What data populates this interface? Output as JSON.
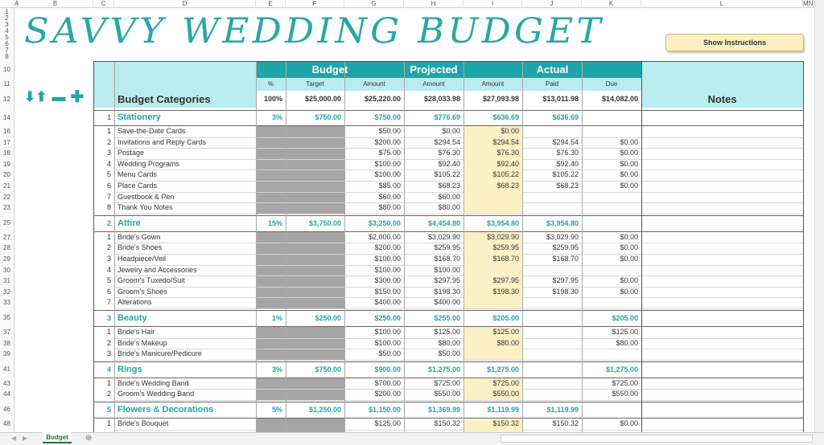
{
  "title": "SAVVY WEDDING BUDGET",
  "show_instructions": "Show Instructions",
  "columns": [
    "A",
    "B",
    "C",
    "D",
    "E",
    "F",
    "G",
    "H",
    "I",
    "J",
    "K",
    "L",
    "M",
    "N"
  ],
  "title_rows": [
    "1",
    "2",
    "3",
    "4",
    "5",
    "6",
    "7",
    "8"
  ],
  "header": {
    "rows": [
      "10",
      "11",
      "12"
    ],
    "categories_label": "Budget Categories",
    "notes_label": "Notes",
    "budget": "Budget",
    "projected": "Projected",
    "actual": "Actual",
    "pct": "%",
    "target": "Target",
    "amount": "Amount",
    "paid": "Paid",
    "due": "Due",
    "totals": {
      "pct": "100%",
      "target": "$25,000.00",
      "budget": "$25,220.00",
      "projected": "$28,033.98",
      "actual": "$27,093.98",
      "paid": "$13,011.98",
      "due": "$14,082.00"
    }
  },
  "icons": [
    "arrow-down-icon",
    "arrow-up-icon",
    "minus-icon",
    "plus-icon"
  ],
  "accent": "#1fa5a8",
  "categories": [
    {
      "row": "14",
      "n": "1",
      "name": "Stationery",
      "pct": "3%",
      "target": "$750.00",
      "budget": "$750.00",
      "projected": "$776.69",
      "actual": "$636.69",
      "paid": "$636.69",
      "due": "",
      "items": [
        {
          "row": "16",
          "n": "1",
          "name": "Save-the-Date Cards",
          "budget": "$50.00",
          "projected": "$0.00",
          "actual": "$0.00",
          "paid": "",
          "due": ""
        },
        {
          "row": "17",
          "n": "2",
          "name": "Invitations and Reply Cards",
          "budget": "$200.00",
          "projected": "$294.54",
          "actual": "$294.54",
          "paid": "$294.54",
          "due": "$0.00"
        },
        {
          "row": "18",
          "n": "3",
          "name": "Postage",
          "budget": "$75.00",
          "projected": "$76.30",
          "actual": "$76.30",
          "paid": "$76.30",
          "due": "$0.00"
        },
        {
          "row": "19",
          "n": "4",
          "name": "Wedding Programs",
          "budget": "$100.00",
          "projected": "$92.40",
          "actual": "$92.40",
          "paid": "$92.40",
          "due": "$0.00"
        },
        {
          "row": "20",
          "n": "5",
          "name": "Menu Cards",
          "budget": "$100.00",
          "projected": "$105.22",
          "actual": "$105.22",
          "paid": "$105.22",
          "due": "$0.00"
        },
        {
          "row": "21",
          "n": "6",
          "name": "Place Cards",
          "budget": "$85.00",
          "projected": "$68.23",
          "actual": "$68.23",
          "paid": "$68.23",
          "due": "$0.00"
        },
        {
          "row": "22",
          "n": "7",
          "name": "Guestbook & Pen",
          "budget": "$60.00",
          "projected": "$60.00",
          "actual": "",
          "paid": "",
          "due": ""
        },
        {
          "row": "23",
          "n": "8",
          "name": "Thank You Notes",
          "budget": "$80.00",
          "projected": "$80.00",
          "actual": "",
          "paid": "",
          "due": ""
        }
      ]
    },
    {
      "row": "25",
      "n": "2",
      "name": "Attire",
      "pct": "15%",
      "target": "$3,750.00",
      "budget": "$3,250.00",
      "projected": "$4,454.80",
      "actual": "$3,954.80",
      "paid": "$3,954.80",
      "due": "",
      "items": [
        {
          "row": "27",
          "n": "1",
          "name": "Bride's Gown",
          "budget": "$2,000.00",
          "projected": "$3,029.90",
          "actual": "$3,029.90",
          "paid": "$3,029.90",
          "due": "$0.00"
        },
        {
          "row": "28",
          "n": "2",
          "name": "Bride's Shoes",
          "budget": "$200.00",
          "projected": "$259.95",
          "actual": "$259.95",
          "paid": "$259.95",
          "due": "$0.00"
        },
        {
          "row": "29",
          "n": "3",
          "name": "Headpiece/Veil",
          "budget": "$100.00",
          "projected": "$168.70",
          "actual": "$168.70",
          "paid": "$168.70",
          "due": "$0.00"
        },
        {
          "row": "30",
          "n": "4",
          "name": "Jewelry and Accessories",
          "budget": "$100.00",
          "projected": "$100.00",
          "actual": "",
          "paid": "",
          "due": ""
        },
        {
          "row": "31",
          "n": "5",
          "name": "Groom's Tuxedo/Suit",
          "budget": "$300.00",
          "projected": "$297.95",
          "actual": "$297.95",
          "paid": "$297.95",
          "due": "$0.00"
        },
        {
          "row": "32",
          "n": "6",
          "name": "Groom's Shoes",
          "budget": "$150.00",
          "projected": "$198.30",
          "actual": "$198.30",
          "paid": "$198.30",
          "due": "$0.00"
        },
        {
          "row": "33",
          "n": "7",
          "name": "Alterations",
          "budget": "$400.00",
          "projected": "$400.00",
          "actual": "",
          "paid": "",
          "due": ""
        }
      ]
    },
    {
      "row": "35",
      "n": "3",
      "name": "Beauty",
      "pct": "1%",
      "target": "$250.00",
      "budget": "$250.00",
      "projected": "$255.00",
      "actual": "$205.00",
      "paid": "",
      "due": "$205.00",
      "items": [
        {
          "row": "37",
          "n": "1",
          "name": "Bride's Hair",
          "budget": "$100.00",
          "projected": "$125.00",
          "actual": "$125.00",
          "paid": "",
          "due": "$125.00"
        },
        {
          "row": "38",
          "n": "2",
          "name": "Bride's Makeup",
          "budget": "$100.00",
          "projected": "$80.00",
          "actual": "$80.00",
          "paid": "",
          "due": "$80.00"
        },
        {
          "row": "39",
          "n": "3",
          "name": "Bride's Manicure/Pedicure",
          "budget": "$50.00",
          "projected": "$50.00",
          "actual": "",
          "paid": "",
          "due": ""
        }
      ]
    },
    {
      "row": "41",
      "n": "4",
      "name": "Rings",
      "pct": "3%",
      "target": "$750.00",
      "budget": "$900.00",
      "projected": "$1,275.00",
      "actual": "$1,275.00",
      "paid": "",
      "due": "$1,275.00",
      "items": [
        {
          "row": "43",
          "n": "1",
          "name": "Bride's Wedding Band",
          "budget": "$700.00",
          "projected": "$725.00",
          "actual": "$725.00",
          "paid": "",
          "due": "$725.00"
        },
        {
          "row": "44",
          "n": "2",
          "name": "Groom's Wedding Band",
          "budget": "$200.00",
          "projected": "$550.00",
          "actual": "$550.00",
          "paid": "",
          "due": "$550.00"
        }
      ]
    },
    {
      "row": "46",
      "n": "5",
      "name": "Flowers & Decorations",
      "pct": "5%",
      "target": "$1,250.00",
      "budget": "$1,150.00",
      "projected": "$1,369.99",
      "actual": "$1,119.99",
      "paid": "$1,119.99",
      "due": "",
      "items": [
        {
          "row": "48",
          "n": "1",
          "name": "Bride's Bouquet",
          "budget": "$125.00",
          "projected": "$150.32",
          "actual": "$150.32",
          "paid": "$150.32",
          "due": "$0.00"
        }
      ]
    }
  ],
  "sheet_tab": "Budget",
  "add_sheet": "⊕"
}
